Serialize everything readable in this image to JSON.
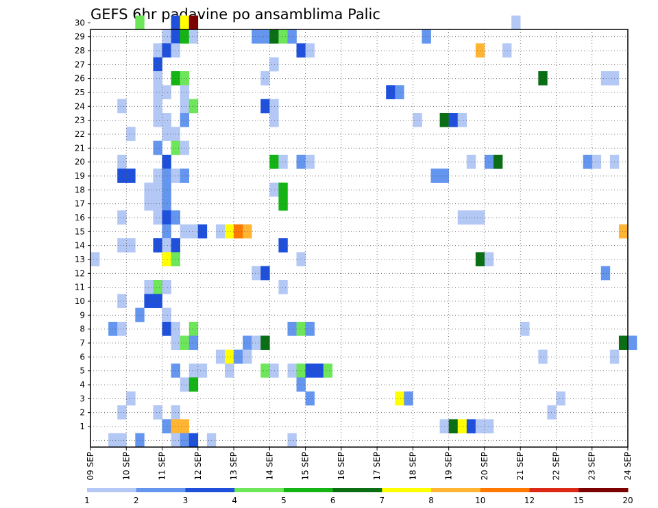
{
  "chart_data": {
    "type": "heatmap",
    "title": "GEFS 6hr padavine po ansamblima Palic",
    "xlabel": "",
    "ylabel": "",
    "x_ticks": [
      "09 SEP",
      "10 SEP",
      "11 SEP",
      "12 SEP",
      "13 SEP",
      "14 SEP",
      "15 SEP",
      "16 SEP",
      "17 SEP",
      "18 SEP",
      "19 SEP",
      "20 SEP",
      "21 SEP",
      "22 SEP",
      "23 SEP",
      "24 SEP"
    ],
    "y_ticks": [
      "1",
      "2",
      "3",
      "4",
      "5",
      "6",
      "7",
      "8",
      "9",
      "10",
      "11",
      "12",
      "13",
      "14",
      "15",
      "16",
      "17",
      "18",
      "19",
      "20",
      "21",
      "22",
      "23",
      "24",
      "25",
      "26",
      "27",
      "28",
      "29",
      "30"
    ],
    "y_range": [
      0,
      30
    ],
    "x_range_steps": [
      0,
      60
    ],
    "grid": true,
    "colorbar": {
      "colors": [
        "#b4c8f5",
        "#6496f0",
        "#1e50dc",
        "#6ee65a",
        "#14b414",
        "#0a6e14",
        "#ffff00",
        "#ffb432",
        "#ff7800",
        "#dc2814",
        "#7d0000"
      ],
      "labels": [
        "1",
        "2",
        "3",
        "4",
        "5",
        "6",
        "7",
        "8",
        "10",
        "12",
        "15",
        "20"
      ]
    },
    "cells": [
      {
        "member": 30,
        "step": 5,
        "level": 3
      },
      {
        "member": 30,
        "step": 9,
        "level": 2
      },
      {
        "member": 30,
        "step": 10,
        "level": 6
      },
      {
        "member": 30,
        "step": 11,
        "level": 10
      },
      {
        "member": 30,
        "step": 47,
        "level": 0
      },
      {
        "member": 29,
        "step": 8,
        "level": 0
      },
      {
        "member": 29,
        "step": 9,
        "level": 2
      },
      {
        "member": 29,
        "step": 10,
        "level": 4
      },
      {
        "member": 29,
        "step": 11,
        "level": 0
      },
      {
        "member": 29,
        "step": 18,
        "level": 1
      },
      {
        "member": 29,
        "step": 19,
        "level": 1
      },
      {
        "member": 29,
        "step": 20,
        "level": 5
      },
      {
        "member": 29,
        "step": 21,
        "level": 3
      },
      {
        "member": 29,
        "step": 22,
        "level": 1
      },
      {
        "member": 29,
        "step": 37,
        "level": 1
      },
      {
        "member": 28,
        "step": 7,
        "level": 0
      },
      {
        "member": 28,
        "step": 8,
        "level": 2
      },
      {
        "member": 28,
        "step": 9,
        "level": 0
      },
      {
        "member": 28,
        "step": 23,
        "level": 2
      },
      {
        "member": 28,
        "step": 24,
        "level": 0
      },
      {
        "member": 28,
        "step": 43,
        "level": 7
      },
      {
        "member": 28,
        "step": 46,
        "level": 0
      },
      {
        "member": 27,
        "step": 7,
        "level": 2
      },
      {
        "member": 27,
        "step": 20,
        "level": 0
      },
      {
        "member": 26,
        "step": 7,
        "level": 0
      },
      {
        "member": 26,
        "step": 9,
        "level": 4
      },
      {
        "member": 26,
        "step": 10,
        "level": 3
      },
      {
        "member": 26,
        "step": 19,
        "level": 0
      },
      {
        "member": 26,
        "step": 50,
        "level": 5
      },
      {
        "member": 26,
        "step": 57,
        "level": 0
      },
      {
        "member": 26,
        "step": 58,
        "level": 0
      },
      {
        "member": 25,
        "step": 7,
        "level": 0
      },
      {
        "member": 25,
        "step": 8,
        "level": 0
      },
      {
        "member": 25,
        "step": 10,
        "level": 0
      },
      {
        "member": 25,
        "step": 33,
        "level": 2
      },
      {
        "member": 25,
        "step": 34,
        "level": 1
      },
      {
        "member": 24,
        "step": 3,
        "level": 0
      },
      {
        "member": 24,
        "step": 7,
        "level": 0
      },
      {
        "member": 24,
        "step": 10,
        "level": 0
      },
      {
        "member": 24,
        "step": 11,
        "level": 3
      },
      {
        "member": 24,
        "step": 19,
        "level": 2
      },
      {
        "member": 24,
        "step": 20,
        "level": 0
      },
      {
        "member": 23,
        "step": 7,
        "level": 0
      },
      {
        "member": 23,
        "step": 8,
        "level": 0
      },
      {
        "member": 23,
        "step": 10,
        "level": 1
      },
      {
        "member": 23,
        "step": 20,
        "level": 0
      },
      {
        "member": 23,
        "step": 36,
        "level": 0
      },
      {
        "member": 23,
        "step": 39,
        "level": 5
      },
      {
        "member": 23,
        "step": 40,
        "level": 2
      },
      {
        "member": 23,
        "step": 41,
        "level": 0
      },
      {
        "member": 22,
        "step": 4,
        "level": 0
      },
      {
        "member": 22,
        "step": 8,
        "level": 0
      },
      {
        "member": 22,
        "step": 9,
        "level": 0
      },
      {
        "member": 21,
        "step": 7,
        "level": 1
      },
      {
        "member": 21,
        "step": 9,
        "level": 3
      },
      {
        "member": 21,
        "step": 10,
        "level": 0
      },
      {
        "member": 20,
        "step": 3,
        "level": 0
      },
      {
        "member": 20,
        "step": 8,
        "level": 2
      },
      {
        "member": 20,
        "step": 20,
        "level": 4
      },
      {
        "member": 20,
        "step": 21,
        "level": 0
      },
      {
        "member": 20,
        "step": 23,
        "level": 1
      },
      {
        "member": 20,
        "step": 24,
        "level": 0
      },
      {
        "member": 20,
        "step": 42,
        "level": 0
      },
      {
        "member": 20,
        "step": 44,
        "level": 1
      },
      {
        "member": 20,
        "step": 45,
        "level": 5
      },
      {
        "member": 20,
        "step": 55,
        "level": 1
      },
      {
        "member": 20,
        "step": 56,
        "level": 0
      },
      {
        "member": 20,
        "step": 58,
        "level": 0
      },
      {
        "member": 19,
        "step": 3,
        "level": 2
      },
      {
        "member": 19,
        "step": 4,
        "level": 2
      },
      {
        "member": 19,
        "step": 7,
        "level": 0
      },
      {
        "member": 19,
        "step": 8,
        "level": 1
      },
      {
        "member": 19,
        "step": 9,
        "level": 0
      },
      {
        "member": 19,
        "step": 10,
        "level": 1
      },
      {
        "member": 19,
        "step": 38,
        "level": 1
      },
      {
        "member": 19,
        "step": 39,
        "level": 1
      },
      {
        "member": 18,
        "step": 6,
        "level": 0
      },
      {
        "member": 18,
        "step": 7,
        "level": 0
      },
      {
        "member": 18,
        "step": 8,
        "level": 1
      },
      {
        "member": 18,
        "step": 20,
        "level": 0
      },
      {
        "member": 18,
        "step": 21,
        "level": 4
      },
      {
        "member": 17,
        "step": 6,
        "level": 0
      },
      {
        "member": 17,
        "step": 7,
        "level": 0
      },
      {
        "member": 17,
        "step": 8,
        "level": 1
      },
      {
        "member": 17,
        "step": 21,
        "level": 4
      },
      {
        "member": 16,
        "step": 3,
        "level": 0
      },
      {
        "member": 16,
        "step": 7,
        "level": 0
      },
      {
        "member": 16,
        "step": 8,
        "level": 2
      },
      {
        "member": 16,
        "step": 9,
        "level": 1
      },
      {
        "member": 16,
        "step": 41,
        "level": 0
      },
      {
        "member": 16,
        "step": 42,
        "level": 0
      },
      {
        "member": 16,
        "step": 43,
        "level": 0
      },
      {
        "member": 15,
        "step": 8,
        "level": 1
      },
      {
        "member": 15,
        "step": 10,
        "level": 0
      },
      {
        "member": 15,
        "step": 11,
        "level": 0
      },
      {
        "member": 15,
        "step": 12,
        "level": 2
      },
      {
        "member": 15,
        "step": 14,
        "level": 0
      },
      {
        "member": 15,
        "step": 15,
        "level": 6
      },
      {
        "member": 15,
        "step": 16,
        "level": 8
      },
      {
        "member": 15,
        "step": 17,
        "level": 7
      },
      {
        "member": 15,
        "step": 59,
        "level": 7
      },
      {
        "member": 14,
        "step": 3,
        "level": 0
      },
      {
        "member": 14,
        "step": 4,
        "level": 0
      },
      {
        "member": 14,
        "step": 7,
        "level": 2
      },
      {
        "member": 14,
        "step": 8,
        "level": 0
      },
      {
        "member": 14,
        "step": 9,
        "level": 2
      },
      {
        "member": 14,
        "step": 21,
        "level": 2
      },
      {
        "member": 13,
        "step": 0,
        "level": 0
      },
      {
        "member": 13,
        "step": 8,
        "level": 6
      },
      {
        "member": 13,
        "step": 9,
        "level": 3
      },
      {
        "member": 13,
        "step": 23,
        "level": 0
      },
      {
        "member": 13,
        "step": 43,
        "level": 5
      },
      {
        "member": 13,
        "step": 44,
        "level": 0
      },
      {
        "member": 12,
        "step": 18,
        "level": 0
      },
      {
        "member": 12,
        "step": 19,
        "level": 2
      },
      {
        "member": 12,
        "step": 57,
        "level": 1
      },
      {
        "member": 11,
        "step": 6,
        "level": 0
      },
      {
        "member": 11,
        "step": 7,
        "level": 3
      },
      {
        "member": 11,
        "step": 8,
        "level": 0
      },
      {
        "member": 11,
        "step": 21,
        "level": 0
      },
      {
        "member": 10,
        "step": 3,
        "level": 0
      },
      {
        "member": 10,
        "step": 6,
        "level": 2
      },
      {
        "member": 10,
        "step": 7,
        "level": 2
      },
      {
        "member": 9,
        "step": 5,
        "level": 1
      },
      {
        "member": 9,
        "step": 8,
        "level": 0
      },
      {
        "member": 8,
        "step": 2,
        "level": 1
      },
      {
        "member": 8,
        "step": 3,
        "level": 0
      },
      {
        "member": 8,
        "step": 8,
        "level": 2
      },
      {
        "member": 8,
        "step": 9,
        "level": 0
      },
      {
        "member": 8,
        "step": 11,
        "level": 3
      },
      {
        "member": 8,
        "step": 22,
        "level": 1
      },
      {
        "member": 8,
        "step": 23,
        "level": 3
      },
      {
        "member": 8,
        "step": 24,
        "level": 1
      },
      {
        "member": 8,
        "step": 48,
        "level": 0
      },
      {
        "member": 7,
        "step": 9,
        "level": 0
      },
      {
        "member": 7,
        "step": 10,
        "level": 3
      },
      {
        "member": 7,
        "step": 11,
        "level": 1
      },
      {
        "member": 7,
        "step": 17,
        "level": 1
      },
      {
        "member": 7,
        "step": 18,
        "level": 0
      },
      {
        "member": 7,
        "step": 19,
        "level": 5
      },
      {
        "member": 7,
        "step": 59,
        "level": 5
      },
      {
        "member": 7,
        "step": 60,
        "level": 1
      },
      {
        "member": 6,
        "step": 14,
        "level": 0
      },
      {
        "member": 6,
        "step": 15,
        "level": 6
      },
      {
        "member": 6,
        "step": 16,
        "level": 1
      },
      {
        "member": 6,
        "step": 17,
        "level": 0
      },
      {
        "member": 6,
        "step": 50,
        "level": 0
      },
      {
        "member": 6,
        "step": 58,
        "level": 0
      },
      {
        "member": 5,
        "step": 9,
        "level": 1
      },
      {
        "member": 5,
        "step": 11,
        "level": 0
      },
      {
        "member": 5,
        "step": 12,
        "level": 0
      },
      {
        "member": 5,
        "step": 15,
        "level": 0
      },
      {
        "member": 5,
        "step": 19,
        "level": 3
      },
      {
        "member": 5,
        "step": 20,
        "level": 0
      },
      {
        "member": 5,
        "step": 22,
        "level": 0
      },
      {
        "member": 5,
        "step": 23,
        "level": 3
      },
      {
        "member": 5,
        "step": 24,
        "level": 2
      },
      {
        "member": 5,
        "step": 25,
        "level": 2
      },
      {
        "member": 5,
        "step": 26,
        "level": 3
      },
      {
        "member": 4,
        "step": 10,
        "level": 0
      },
      {
        "member": 4,
        "step": 11,
        "level": 4
      },
      {
        "member": 4,
        "step": 23,
        "level": 1
      },
      {
        "member": 3,
        "step": 4,
        "level": 0
      },
      {
        "member": 3,
        "step": 24,
        "level": 1
      },
      {
        "member": 3,
        "step": 34,
        "level": 6
      },
      {
        "member": 3,
        "step": 35,
        "level": 1
      },
      {
        "member": 3,
        "step": 52,
        "level": 0
      },
      {
        "member": 2,
        "step": 3,
        "level": 0
      },
      {
        "member": 2,
        "step": 7,
        "level": 0
      },
      {
        "member": 2,
        "step": 9,
        "level": 0
      },
      {
        "member": 2,
        "step": 51,
        "level": 0
      },
      {
        "member": 1,
        "step": 8,
        "level": 1
      },
      {
        "member": 1,
        "step": 9,
        "level": 7
      },
      {
        "member": 1,
        "step": 10,
        "level": 7
      },
      {
        "member": 1,
        "step": 39,
        "level": 0
      },
      {
        "member": 1,
        "step": 40,
        "level": 5
      },
      {
        "member": 1,
        "step": 41,
        "level": 6
      },
      {
        "member": 1,
        "step": 42,
        "level": 2
      },
      {
        "member": 1,
        "step": 43,
        "level": 0
      },
      {
        "member": 1,
        "step": 44,
        "level": 0
      },
      {
        "member": 0,
        "step": 2,
        "level": 0
      },
      {
        "member": 0,
        "step": 3,
        "level": 0
      },
      {
        "member": 0,
        "step": 5,
        "level": 1
      },
      {
        "member": 0,
        "step": 9,
        "level": 0
      },
      {
        "member": 0,
        "step": 10,
        "level": 1
      },
      {
        "member": 0,
        "step": 11,
        "level": 2
      },
      {
        "member": 0,
        "step": 13,
        "level": 0
      },
      {
        "member": 0,
        "step": 22,
        "level": 0
      }
    ]
  }
}
